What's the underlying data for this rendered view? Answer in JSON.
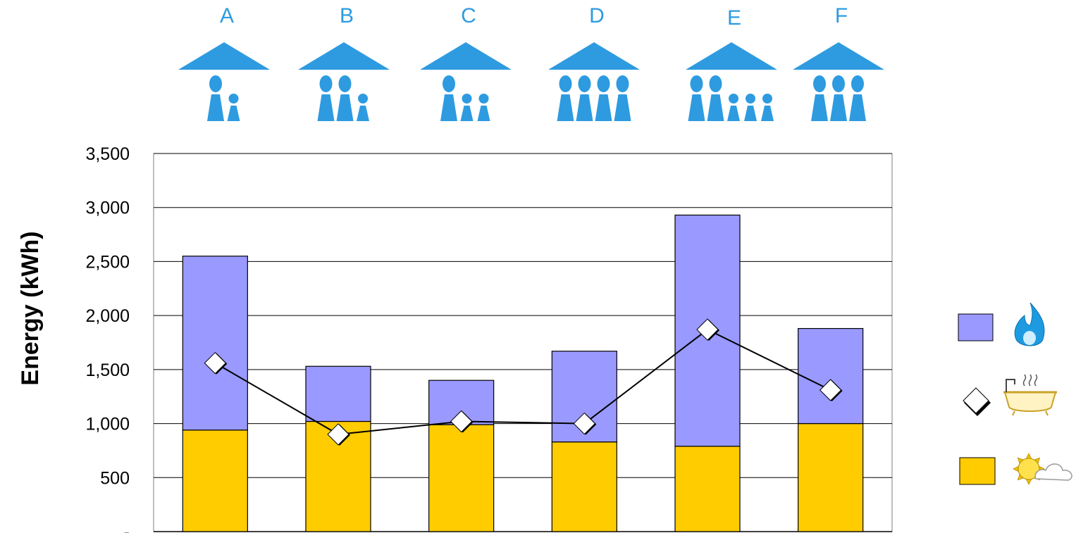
{
  "chart_data": {
    "type": "bar",
    "stacked": true,
    "categories": [
      "A",
      "B",
      "C",
      "D",
      "E",
      "F"
    ],
    "occupants": [
      {
        "adults": 1,
        "children": 1
      },
      {
        "adults": 2,
        "children": 1
      },
      {
        "adults": 1,
        "children": 2
      },
      {
        "adults": 4,
        "children": 0
      },
      {
        "adults": 2,
        "children": 3
      },
      {
        "adults": 3,
        "children": 0
      }
    ],
    "series": [
      {
        "legend_icon": "sun-cloud-icon",
        "kind": "bar",
        "color": "#ffcc00",
        "values": [
          940,
          1020,
          990,
          830,
          790,
          1000
        ]
      },
      {
        "legend_icon": "gas-flame-icon",
        "kind": "bar",
        "color": "#9999ff",
        "values": [
          1610,
          510,
          410,
          840,
          2140,
          880
        ]
      },
      {
        "legend_icon": "bathtub-icon",
        "kind": "line",
        "color": "#000000",
        "marker": "diamond",
        "values": [
          1560,
          900,
          1020,
          1000,
          1870,
          1310
        ]
      }
    ],
    "ylabel": "Energy (kWh)",
    "yticks": [
      "-",
      "500",
      "1,000",
      "1,500",
      "2,000",
      "2,500",
      "3,000",
      "3,500"
    ],
    "ylim": [
      0,
      3500
    ],
    "grid": true,
    "legend_position": "right",
    "house_color": "#2e9be0"
  }
}
